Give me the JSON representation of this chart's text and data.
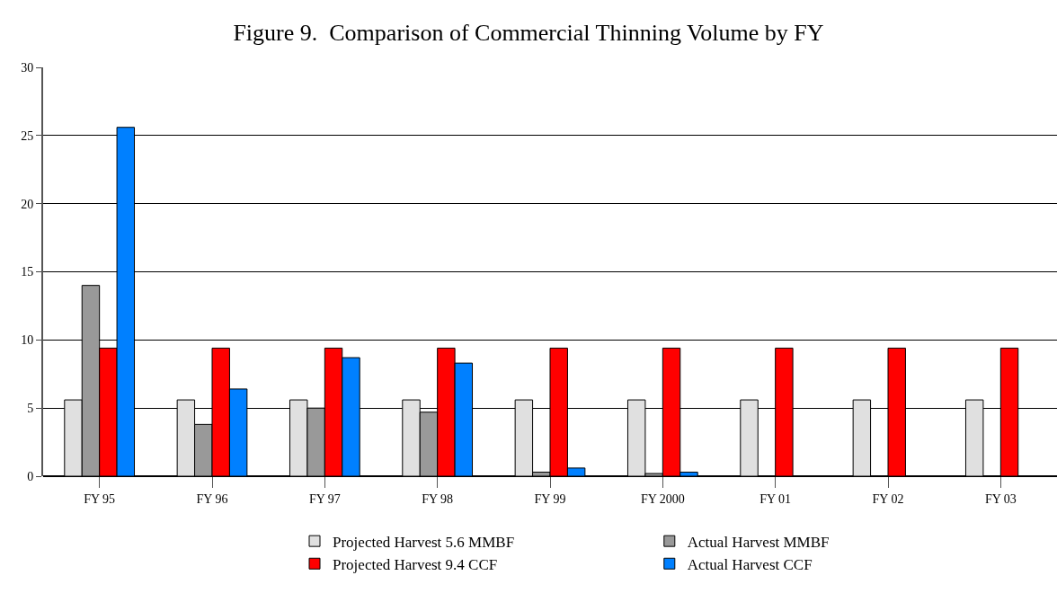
{
  "chart_data": {
    "type": "bar",
    "title": "Figure 9.  Comparison of Commercial Thinning Volume by FY",
    "categories": [
      "FY 95",
      "FY 96",
      "FY 97",
      "FY 98",
      "FY 99",
      "FY 2000",
      "FY 01",
      "FY 02",
      "FY 03"
    ],
    "series": [
      {
        "name": "Projected Harvest 5.6 MMBF",
        "color": "#e0e0e0",
        "values": [
          5.6,
          5.6,
          5.6,
          5.6,
          5.6,
          5.6,
          5.6,
          5.6,
          5.6
        ]
      },
      {
        "name": "Actual Harvest MMBF",
        "color": "#999999",
        "values": [
          14.0,
          3.8,
          5.0,
          4.7,
          0.3,
          0.2,
          null,
          null,
          null
        ]
      },
      {
        "name": "Projected Harvest 9.4 CCF",
        "color": "#ff0000",
        "values": [
          9.4,
          9.4,
          9.4,
          9.4,
          9.4,
          9.4,
          9.4,
          9.4,
          9.4
        ]
      },
      {
        "name": "Actual Harvest CCF",
        "color": "#0080ff",
        "values": [
          25.6,
          6.4,
          8.7,
          8.3,
          0.6,
          0.3,
          null,
          null,
          null
        ]
      }
    ],
    "ylim": [
      0,
      30
    ],
    "yticks": [
      0,
      5,
      10,
      15,
      20,
      25,
      30
    ],
    "grid": "y",
    "legend": "bottom"
  }
}
